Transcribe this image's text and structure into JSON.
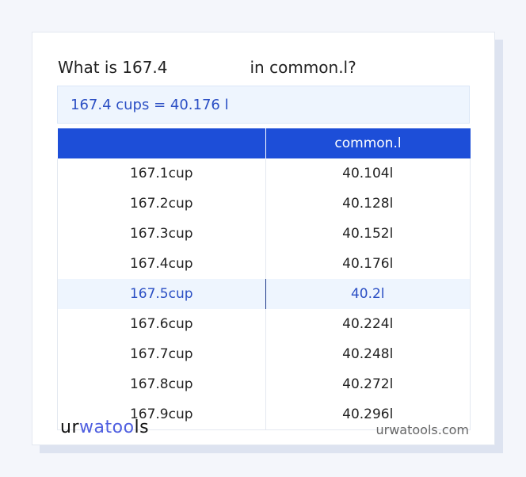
{
  "title": {
    "prefix": "What is 167.4",
    "suffix": "in common.l?"
  },
  "result": "167.4 cups = 40.176 l",
  "table": {
    "headers": [
      "",
      "common.l"
    ],
    "rows": [
      [
        "167.1cup",
        "40.104l"
      ],
      [
        "167.2cup",
        "40.128l"
      ],
      [
        "167.3cup",
        "40.152l"
      ],
      [
        "167.4cup",
        "40.176l"
      ],
      [
        "167.5cup",
        "40.2l"
      ],
      [
        "167.6cup",
        "40.224l"
      ],
      [
        "167.7cup",
        "40.248l"
      ],
      [
        "167.8cup",
        "40.272l"
      ],
      [
        "167.9cup",
        "40.296l"
      ]
    ],
    "highlighted_row": 4
  },
  "footer": {
    "logo": {
      "a": "ur",
      "b": "wa",
      "c": "too",
      "d": "ls"
    },
    "site": "urwatools.com"
  },
  "colors": {
    "accent": "#1d4ed8",
    "highlight_bg": "#eef5fe",
    "highlight_text": "#2b4fc4"
  }
}
